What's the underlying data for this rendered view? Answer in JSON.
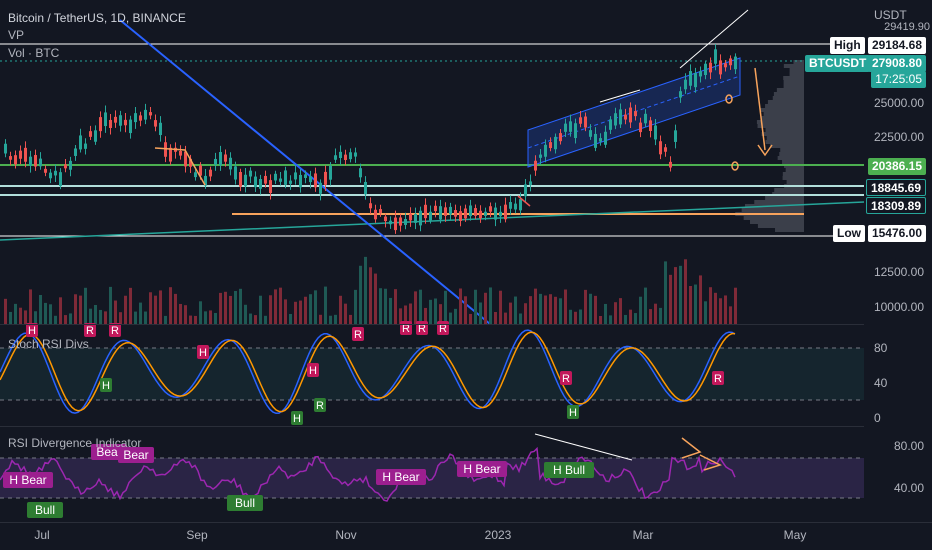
{
  "header": {
    "symbol": "Bitcoin / TetherUS, 1D, BINANCE",
    "indicator_vp": "VP",
    "indicator_vol": "Vol · BTC"
  },
  "price_axis": {
    "currency": "USDT",
    "high_label": "High",
    "high_value": "29184.68",
    "ticker": "BTCUSDT",
    "last_price": "27908.80",
    "countdown": "17:25:05",
    "level_1": "20386.15",
    "level_2": "18845.69",
    "level_3": "18309.89",
    "low_label": "Low",
    "low_value": "15476.00",
    "ticks": [
      "25000.00",
      "22500.00",
      "12500.00",
      "10000.00"
    ],
    "top_partial": "29419.90"
  },
  "stoch_pane": {
    "title": "Stoch RSI Divs",
    "ticks": [
      "80",
      "40",
      "0"
    ]
  },
  "rsi_pane": {
    "title": "RSI Divergence Indicator",
    "ticks": [
      "80.00",
      "40.00"
    ]
  },
  "time_axis": [
    "Jul",
    "Sep",
    "Nov",
    "2023",
    "Mar",
    "May"
  ],
  "labels": {
    "stoch": [
      {
        "t": "H",
        "kind": "bear"
      },
      {
        "t": "R",
        "kind": "bear"
      },
      {
        "t": "R",
        "kind": "bear"
      },
      {
        "t": "H",
        "kind": "bear"
      },
      {
        "t": "H",
        "kind": "bear"
      },
      {
        "t": "H",
        "kind": "bull"
      },
      {
        "t": "R",
        "kind": "bull"
      },
      {
        "t": "H",
        "kind": "bull"
      },
      {
        "t": "R",
        "kind": "bear"
      },
      {
        "t": "R",
        "kind": "bear"
      },
      {
        "t": "R",
        "kind": "bear"
      },
      {
        "t": "R",
        "kind": "bear"
      },
      {
        "t": "R",
        "kind": "bear"
      },
      {
        "t": "H",
        "kind": "bull"
      },
      {
        "t": "R",
        "kind": "bear"
      }
    ],
    "rsi": [
      {
        "t": "H Bear",
        "kind": "bear"
      },
      {
        "t": "Bull",
        "kind": "bull"
      },
      {
        "t": "Bear",
        "kind": "bear"
      },
      {
        "t": "Bear",
        "kind": "bear"
      },
      {
        "t": "Bull",
        "kind": "bull"
      },
      {
        "t": "H Bear",
        "kind": "bear"
      },
      {
        "t": "H Bear",
        "kind": "bear"
      },
      {
        "t": "H Bull",
        "kind": "bull"
      }
    ]
  },
  "colors": {
    "background": "#131722",
    "bull": "#26a69a",
    "bear": "#ef5350",
    "bear_label": "#b71c5d",
    "bull_label": "#2e7d32",
    "level_green": "#4caf50",
    "level_teal": "#26a69a",
    "orange": "#f7a35c",
    "channel": "#2962ff",
    "rsi": "#9c27b0"
  }
}
